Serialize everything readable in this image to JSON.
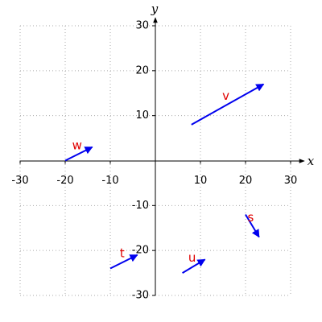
{
  "chart_data": {
    "type": "quiver",
    "xlim": [
      -30,
      30
    ],
    "ylim": [
      -30,
      30
    ],
    "xticks": [
      -30,
      -20,
      -10,
      10,
      20,
      30
    ],
    "yticks": [
      -30,
      -20,
      -10,
      10,
      20,
      30
    ],
    "grid": true,
    "xlabel": "x",
    "ylabel": "y",
    "color": "#0000ee",
    "label_color": "#e00000",
    "vectors": [
      {
        "name": "v",
        "x0": 8,
        "y0": 8,
        "x1": 24,
        "y1": 17
      },
      {
        "name": "w",
        "x0": -20,
        "y0": 0,
        "x1": -14,
        "y1": 3
      },
      {
        "name": "s",
        "x0": 20,
        "y0": -12,
        "x1": 23,
        "y1": -17
      },
      {
        "name": "t",
        "x0": -10,
        "y0": -24,
        "x1": -4,
        "y1": -21
      },
      {
        "name": "u",
        "x0": 6,
        "y0": -25,
        "x1": 11,
        "y1": -22
      }
    ]
  }
}
